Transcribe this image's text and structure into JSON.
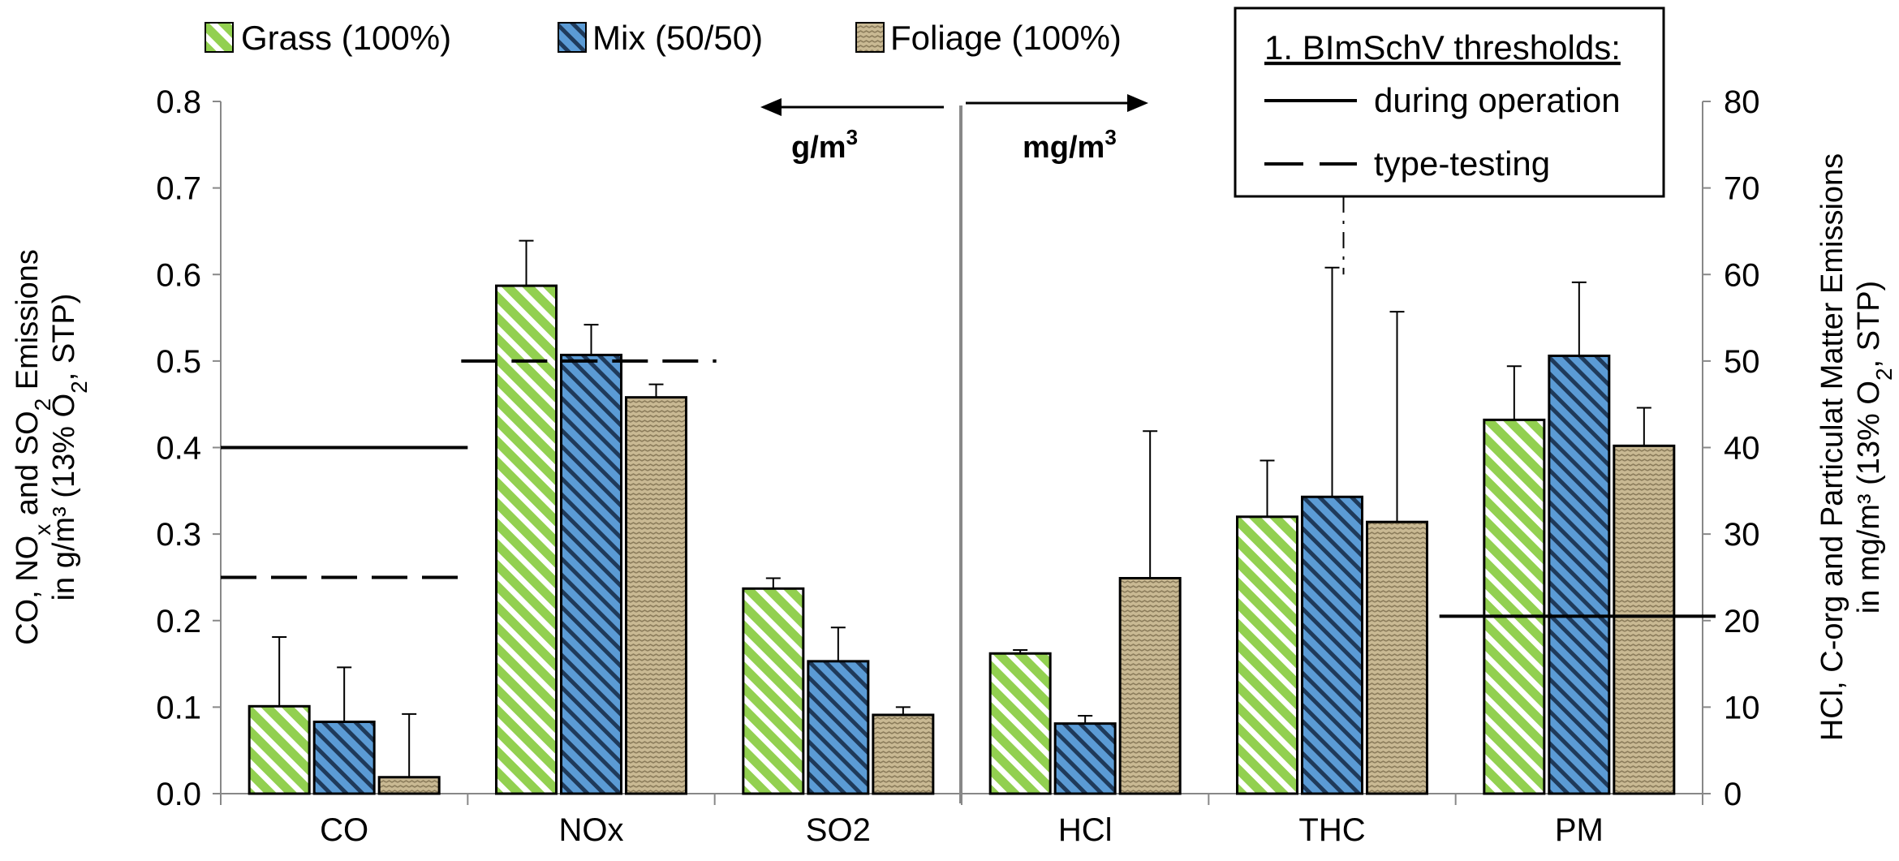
{
  "chart_data": {
    "type": "bar",
    "categories": [
      "CO",
      "NOx",
      "SO2",
      "HCl",
      "THC",
      "PM"
    ],
    "left_axis": {
      "label_line1": "CO, NOx and SO2 Emissions",
      "label_line2": "in g/m³ (13% O2, STP)",
      "ylim": [
        0,
        0.8
      ],
      "ticks": [
        "0.0",
        "0.1",
        "0.2",
        "0.3",
        "0.4",
        "0.5",
        "0.6",
        "0.7",
        "0.8"
      ],
      "categories": [
        "CO",
        "NOx",
        "SO2"
      ]
    },
    "right_axis": {
      "label_line1": "HCl, C-org and Particulat Matter Emissions",
      "label_line2": "in mg/m³ (13% O2, STP)",
      "ylim": [
        0,
        80
      ],
      "ticks": [
        "0",
        "10",
        "20",
        "30",
        "40",
        "50",
        "60",
        "70",
        "80"
      ],
      "categories": [
        "HCl",
        "THC",
        "PM"
      ]
    },
    "series": [
      {
        "name": "Grass (100%)",
        "color": "#92d050",
        "pattern": "wide-diagonal",
        "values": [
          0.101,
          0.587,
          0.237,
          16.2,
          32.0,
          43.2
        ],
        "errors": [
          0.08,
          0.052,
          0.012,
          0.4,
          6.5,
          6.2
        ]
      },
      {
        "name": "Mix (50/50)",
        "color": "#5b9bd5",
        "pattern": "dark-diagonal",
        "values": [
          0.083,
          0.507,
          0.153,
          8.1,
          34.3,
          50.6
        ],
        "errors": [
          0.063,
          0.035,
          0.039,
          0.9,
          26.5,
          8.5
        ]
      },
      {
        "name": "Foliage (100%)",
        "color": "#c9b993",
        "pattern": "wave",
        "values": [
          0.019,
          0.458,
          0.091,
          24.9,
          31.4,
          40.2
        ],
        "errors": [
          0.073,
          0.015,
          0.009,
          17.0,
          24.3,
          4.4
        ]
      }
    ],
    "unit_labels": {
      "left": "g/m",
      "right": "mg/m",
      "sup": "3"
    },
    "legend_box": {
      "title": "1. BImSchV thresholds:",
      "entries": [
        {
          "label": "during operation",
          "style": "solid"
        },
        {
          "label": "type-testing",
          "style": "dashed"
        }
      ]
    },
    "thresholds": [
      {
        "category": "CO",
        "axis": "left",
        "value": 0.4,
        "style": "solid"
      },
      {
        "category": "CO",
        "axis": "left",
        "value": 0.25,
        "style": "dashed"
      },
      {
        "category": "NOx",
        "axis": "left",
        "value": 0.5,
        "style": "dashed"
      },
      {
        "category": "PM",
        "axis": "right",
        "value": 20.5,
        "style": "solid"
      },
      {
        "category": "THC",
        "axis": "right",
        "value": 105,
        "style": "dash-dot"
      }
    ]
  }
}
